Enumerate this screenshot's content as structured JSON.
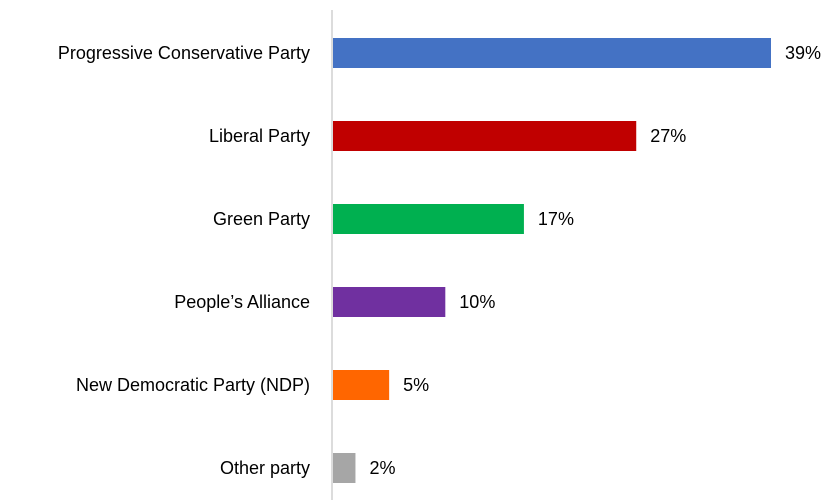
{
  "chart_data": {
    "type": "bar",
    "orientation": "horizontal",
    "categories": [
      "Progressive Conservative Party",
      "Liberal Party",
      "Green Party",
      "People’s Alliance",
      "New Democratic Party (NDP)",
      "Other party"
    ],
    "values": [
      39,
      27,
      17,
      10,
      5,
      2
    ],
    "value_labels": [
      "39%",
      "27%",
      "17%",
      "10%",
      "5%",
      "2%"
    ],
    "colors": [
      "#4472C4",
      "#C00000",
      "#00B050",
      "#7030A0",
      "#FF6600",
      "#A6A6A6"
    ],
    "title": "",
    "xlabel": "",
    "ylabel": "",
    "xlim": [
      0,
      39
    ],
    "grid": false,
    "legend": "none"
  }
}
